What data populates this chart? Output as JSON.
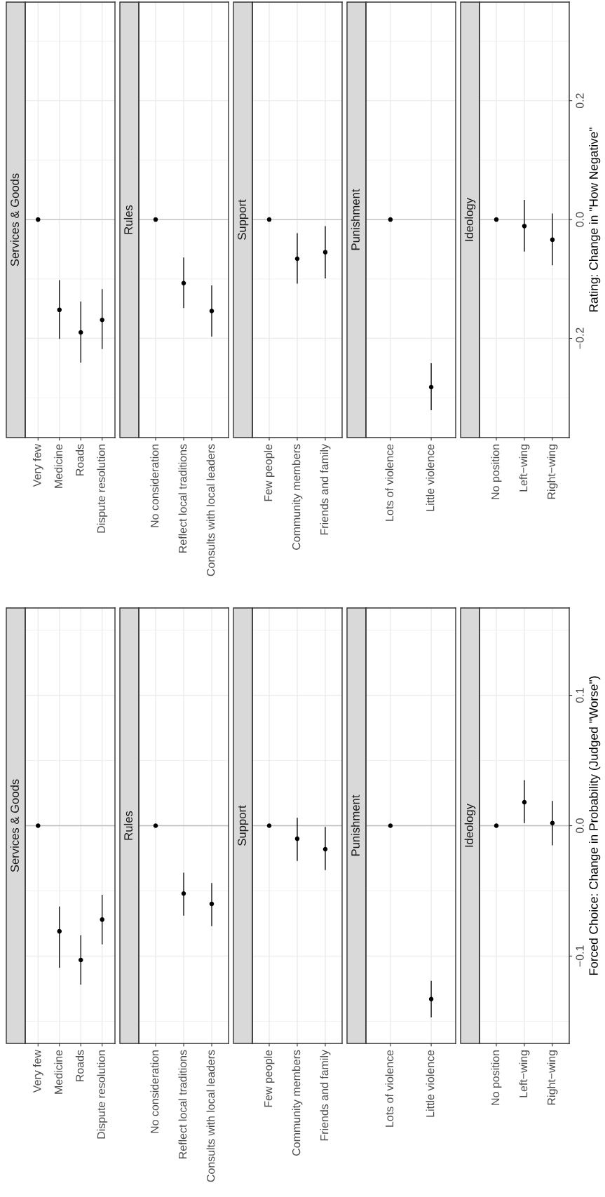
{
  "chart_data": [
    {
      "type": "scatter",
      "title": "Services & Goods",
      "categories": [
        "Very few",
        "Medicine",
        "Roads",
        "Dispute resolution"
      ],
      "values": [
        0,
        -0.152,
        -0.19,
        -0.169
      ],
      "errors": [
        null,
        [
          -0.201,
          -0.102
        ],
        [
          -0.241,
          -0.138
        ],
        [
          -0.218,
          -0.117
        ]
      ],
      "ylim": [
        -0.367,
        0.366
      ],
      "yticks": [
        -0.2,
        0.0,
        0.2
      ],
      "tick_labels": "x",
      "grid": true,
      "marker": "circle",
      "color": "#000000",
      "ref_lines": [
        {
          "axis": "y",
          "value": 0,
          "color": "#bebebe"
        }
      ]
    },
    {
      "type": "scatter",
      "title": "Rules",
      "categories": [
        "No consideration",
        "Reflect local traditions",
        "Consults with local leaders"
      ],
      "values": [
        0,
        -0.107,
        -0.154
      ],
      "errors": [
        null,
        [
          -0.149,
          -0.064
        ],
        [
          -0.197,
          -0.111
        ]
      ],
      "ylim": [
        -0.367,
        0.366
      ],
      "yticks": [
        -0.2,
        0.0,
        0.2
      ],
      "tick_labels": "x",
      "grid": true,
      "marker": "circle",
      "color": "#000000",
      "ref_lines": [
        {
          "axis": "y",
          "value": 0,
          "color": "#bebebe"
        }
      ]
    },
    {
      "type": "scatter",
      "title": "Support",
      "categories": [
        "Few people",
        "Community members",
        "Friends and family"
      ],
      "values": [
        0,
        -0.066,
        -0.055
      ],
      "errors": [
        null,
        [
          -0.108,
          -0.023
        ],
        [
          -0.099,
          -0.011
        ]
      ],
      "ylim": [
        -0.367,
        0.366
      ],
      "yticks": [
        -0.2,
        0.0,
        0.2
      ],
      "tick_labels": "x",
      "grid": true,
      "marker": "circle",
      "color": "#000000",
      "ref_lines": [
        {
          "axis": "y",
          "value": 0,
          "color": "#bebebe"
        }
      ]
    },
    {
      "type": "scatter",
      "title": "Punishment",
      "categories": [
        "Lots of violence",
        "Little violence"
      ],
      "values": [
        0,
        -0.282
      ],
      "errors": [
        null,
        [
          -0.321,
          -0.242
        ]
      ],
      "ylim": [
        -0.367,
        0.366
      ],
      "yticks": [
        -0.2,
        0.0,
        0.2
      ],
      "tick_labels": "x",
      "grid": true,
      "marker": "circle",
      "color": "#000000",
      "ref_lines": [
        {
          "axis": "y",
          "value": 0,
          "color": "#bebebe"
        }
      ]
    },
    {
      "type": "scatter",
      "title": "Ideology",
      "categories": [
        "No position",
        "Left−wing",
        "Right−wing"
      ],
      "values": [
        0,
        -0.011,
        -0.034
      ],
      "errors": [
        null,
        [
          -0.054,
          0.033
        ],
        [
          -0.077,
          0.01
        ]
      ],
      "ylim": [
        -0.367,
        0.366
      ],
      "yticks": [
        {
          "value": -0.2,
          "label": "−0.2"
        },
        {
          "value": 0,
          "label": "0.0"
        },
        0.2
      ],
      "ylabel": "Rating: Change in \"How Negative\"",
      "grid": true,
      "marker": "circle",
      "color": "#000000",
      "ref_lines": [
        {
          "axis": "y",
          "value": 0,
          "color": "#bebebe"
        }
      ]
    },
    {
      "type": "scatter",
      "title": "Services & Goods",
      "categories": [
        "Very few",
        "Medicine",
        "Roads",
        "Dispute resolution"
      ],
      "values": [
        0,
        -0.081,
        -0.103,
        -0.072
      ],
      "errors": [
        null,
        [
          -0.109,
          -0.062
        ],
        [
          -0.122,
          -0.084
        ],
        [
          -0.091,
          -0.053
        ]
      ],
      "ylim": [
        -0.167,
        0.167
      ],
      "yticks": [
        -0.1,
        0.0,
        0.1
      ],
      "tick_labels": "x",
      "grid": true,
      "marker": "circle",
      "color": "#000000",
      "ref_lines": [
        {
          "axis": "y",
          "value": 0,
          "color": "#bebebe"
        }
      ]
    },
    {
      "type": "scatter",
      "title": "Rules",
      "categories": [
        "No consideration",
        "Reflect local traditions",
        "Consults with local leaders"
      ],
      "values": [
        0,
        -0.052,
        -0.06
      ],
      "errors": [
        null,
        [
          -0.069,
          -0.036
        ],
        [
          -0.077,
          -0.044
        ]
      ],
      "ylim": [
        -0.167,
        0.167
      ],
      "yticks": [
        -0.1,
        0.0,
        0.1
      ],
      "tick_labels": "x",
      "grid": true,
      "marker": "circle",
      "color": "#000000",
      "ref_lines": [
        {
          "axis": "y",
          "value": 0,
          "color": "#bebebe"
        }
      ]
    },
    {
      "type": "scatter",
      "title": "Support",
      "categories": [
        "Few people",
        "Community members",
        "Friends and family"
      ],
      "values": [
        0,
        -0.01,
        -0.018
      ],
      "errors": [
        null,
        [
          -0.027,
          0.006
        ],
        [
          -0.034,
          -0.001
        ]
      ],
      "ylim": [
        -0.167,
        0.167
      ],
      "yticks": [
        -0.1,
        0.0,
        0.1
      ],
      "tick_labels": "x",
      "grid": true,
      "marker": "circle",
      "color": "#000000",
      "ref_lines": [
        {
          "axis": "y",
          "value": 0,
          "color": "#bebebe"
        }
      ]
    },
    {
      "type": "scatter",
      "title": "Punishment",
      "categories": [
        "Lots of violence",
        "Little violence"
      ],
      "values": [
        0,
        -0.133
      ],
      "errors": [
        null,
        [
          -0.147,
          -0.119
        ]
      ],
      "ylim": [
        -0.167,
        0.167
      ],
      "yticks": [
        -0.1,
        0.0,
        0.1
      ],
      "tick_labels": "x",
      "grid": true,
      "marker": "circle",
      "color": "#000000",
      "ref_lines": [
        {
          "axis": "y",
          "value": 0,
          "color": "#bebebe"
        }
      ]
    },
    {
      "type": "scatter",
      "title": "Ideology",
      "categories": [
        "No position",
        "Left−wing",
        "Right−wing"
      ],
      "values": [
        0,
        0.018,
        0.002
      ],
      "errors": [
        null,
        [
          0.002,
          0.035
        ],
        [
          -0.015,
          0.019
        ]
      ],
      "ylim": [
        -0.167,
        0.167
      ],
      "yticks": [
        {
          "value": -0.1,
          "label": "−0.1"
        },
        {
          "value": 0,
          "label": "0.0"
        },
        0.1
      ],
      "ylabel": "Forced Choice: Change in Probability (Judged \"Worse\")",
      "grid": true,
      "marker": "circle",
      "color": "#000000",
      "ref_lines": [
        {
          "axis": "y",
          "value": 0,
          "color": "#bebebe"
        }
      ]
    }
  ]
}
